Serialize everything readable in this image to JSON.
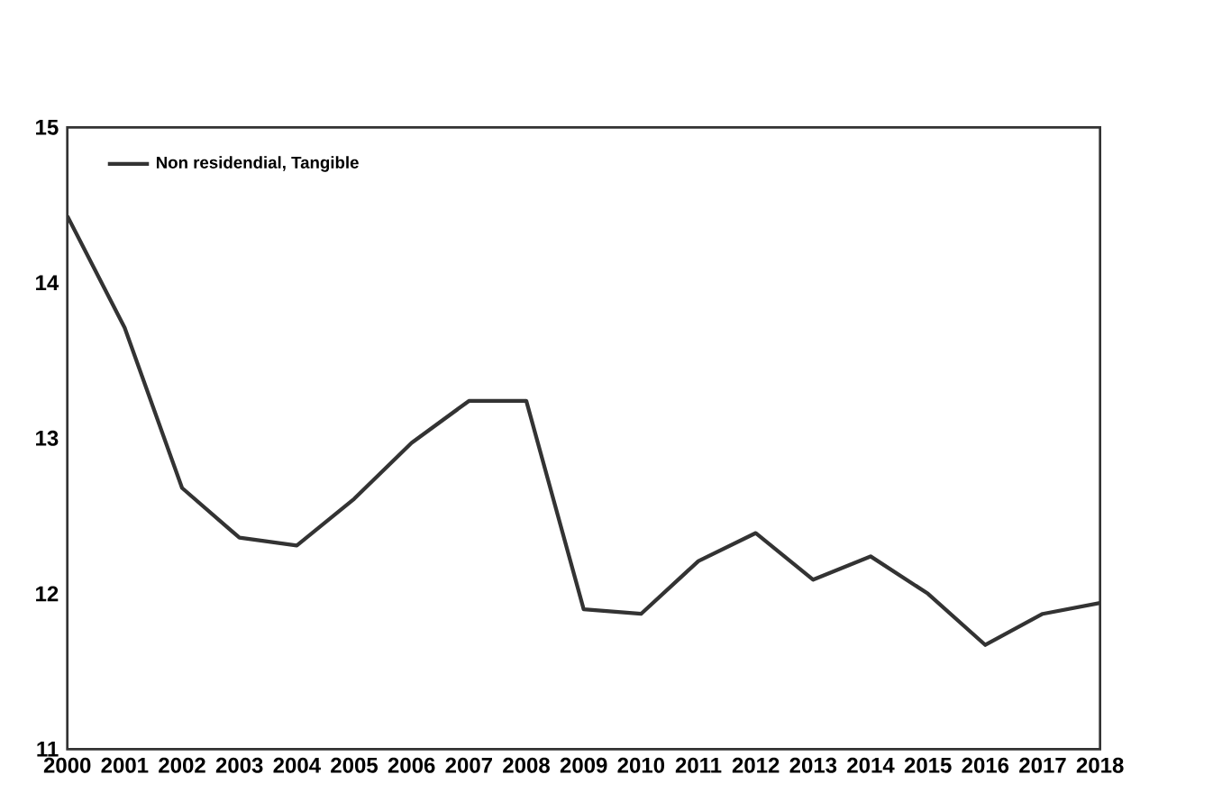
{
  "chart_data": {
    "type": "line",
    "categories": [
      "2000",
      "2001",
      "2002",
      "2003",
      "2004",
      "2005",
      "2006",
      "2007",
      "2008",
      "2009",
      "2010",
      "2011",
      "2012",
      "2013",
      "2014",
      "2015",
      "2016",
      "2017",
      "2018"
    ],
    "series": [
      {
        "name": "Non residendial, Tangible",
        "color": "#333333",
        "values": [
          14.43,
          13.71,
          12.68,
          12.36,
          12.31,
          12.61,
          12.97,
          13.24,
          13.24,
          11.9,
          11.87,
          12.21,
          12.39,
          12.09,
          12.24,
          12.0,
          11.67,
          11.87,
          11.94
        ]
      }
    ],
    "ylim": [
      11,
      15
    ],
    "yticks": [
      11,
      12,
      13,
      14,
      15
    ],
    "grid": false,
    "legend": "top left",
    "marker": "none",
    "line_style": "solid"
  }
}
